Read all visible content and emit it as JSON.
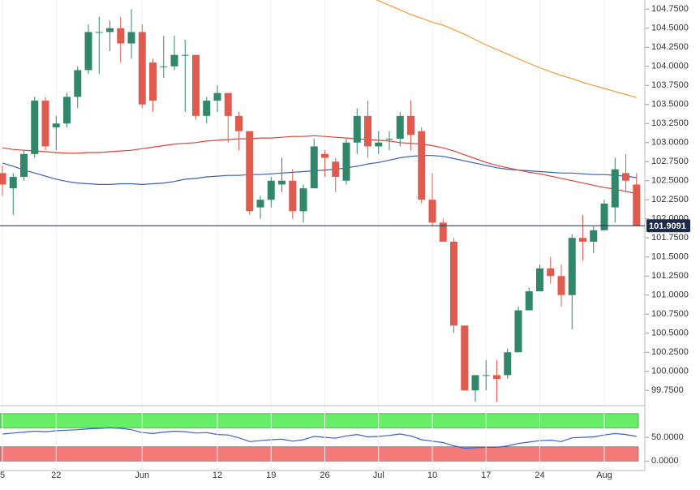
{
  "chart_data": [
    {
      "type": "candlestick",
      "categories": [
        "5",
        null,
        null,
        null,
        null,
        "22",
        null,
        null,
        null,
        null,
        null,
        null,
        null,
        "Jun",
        null,
        null,
        null,
        null,
        null,
        null,
        "12",
        null,
        null,
        null,
        null,
        "19",
        null,
        null,
        null,
        null,
        "26",
        null,
        null,
        null,
        null,
        "Jul",
        null,
        null,
        null,
        null,
        "10",
        null,
        null,
        null,
        null,
        "17",
        null,
        null,
        null,
        null,
        "24",
        null,
        null,
        null,
        null,
        null,
        "Aug",
        null,
        null,
        null
      ],
      "open": [
        102.6,
        102.4,
        102.55,
        102.85,
        103.55,
        103.2,
        103.25,
        103.6,
        103.95,
        104.45,
        104.45,
        104.5,
        104.3,
        104.45,
        104.05,
        104.0,
        104.0,
        104.15,
        104.15,
        103.35,
        103.55,
        103.65,
        103.35,
        103.15,
        102.15,
        102.25,
        102.45,
        102.5,
        102.1,
        102.4,
        102.85,
        102.75,
        102.5,
        103.0,
        103.35,
        102.95,
        103.05,
        103.05,
        103.35,
        103.15,
        102.25,
        101.95,
        101.7,
        100.6,
        99.75,
        99.95,
        99.95,
        99.95,
        100.25,
        100.8,
        101.05,
        101.35,
        101.25,
        101.0,
        101.75,
        101.7,
        101.85,
        102.15,
        102.6,
        102.45
      ],
      "high": [
        102.7,
        102.6,
        102.9,
        103.6,
        103.6,
        103.35,
        103.65,
        104.0,
        104.55,
        104.65,
        104.6,
        104.65,
        104.75,
        104.55,
        104.1,
        104.4,
        104.4,
        104.35,
        104.15,
        103.6,
        103.75,
        103.65,
        103.4,
        103.15,
        102.3,
        102.55,
        102.8,
        102.65,
        102.45,
        103.05,
        102.9,
        102.8,
        103.05,
        103.45,
        103.55,
        103.15,
        103.15,
        103.4,
        103.55,
        103.2,
        102.6,
        102.0,
        101.75,
        100.6,
        99.95,
        100.15,
        100.15,
        100.3,
        100.85,
        101.1,
        101.4,
        101.5,
        101.4,
        101.8,
        102.05,
        101.9,
        102.25,
        102.8,
        102.85,
        102.6
      ],
      "low": [
        102.3,
        102.05,
        102.5,
        102.8,
        102.9,
        102.9,
        103.2,
        103.45,
        103.9,
        103.9,
        104.2,
        104.05,
        104.1,
        103.45,
        103.4,
        103.85,
        103.95,
        103.4,
        103.3,
        103.25,
        103.4,
        103.0,
        102.9,
        102.05,
        102.0,
        102.15,
        102.35,
        102.0,
        101.95,
        102.4,
        102.55,
        102.35,
        102.45,
        102.85,
        102.8,
        102.85,
        102.9,
        102.95,
        102.9,
        102.2,
        101.9,
        101.7,
        100.5,
        99.75,
        99.6,
        99.75,
        99.6,
        99.9,
        100.25,
        100.8,
        101.05,
        101.15,
        100.85,
        100.55,
        101.45,
        101.55,
        101.85,
        101.95,
        102.35,
        101.9
      ],
      "close": [
        102.45,
        102.55,
        102.85,
        103.55,
        102.95,
        103.25,
        103.6,
        103.95,
        104.45,
        104.45,
        104.5,
        104.3,
        104.45,
        103.5,
        103.55,
        104.0,
        104.15,
        104.15,
        103.35,
        103.55,
        103.65,
        103.35,
        103.15,
        102.1,
        102.25,
        102.5,
        102.5,
        102.1,
        102.4,
        102.95,
        102.8,
        102.55,
        103.0,
        103.35,
        102.95,
        103.0,
        103.05,
        103.35,
        103.1,
        102.25,
        101.95,
        101.7,
        100.6,
        99.75,
        99.95,
        99.95,
        99.9,
        100.25,
        100.8,
        101.05,
        101.35,
        101.25,
        101.0,
        101.75,
        101.7,
        101.85,
        102.2,
        102.65,
        102.5,
        101.9091
      ],
      "up_color": "#31876a",
      "down_color": "#e15a4e",
      "series": [
        {
          "color": "#3a5fb4",
          "values": [
            102.73,
            102.69,
            102.64,
            102.6,
            102.56,
            102.52,
            102.49,
            102.47,
            102.46,
            102.45,
            102.45,
            102.46,
            102.46,
            102.45,
            102.46,
            102.47,
            102.49,
            102.52,
            102.53,
            102.55,
            102.56,
            102.57,
            102.57,
            102.58,
            102.58,
            102.59,
            102.6,
            102.61,
            102.62,
            102.63,
            102.64,
            102.65,
            102.67,
            102.69,
            102.72,
            102.74,
            102.77,
            102.8,
            102.82,
            102.83,
            102.83,
            102.82,
            102.79,
            102.76,
            102.73,
            102.7,
            102.67,
            102.65,
            102.64,
            102.63,
            102.62,
            102.61,
            102.6,
            102.6,
            102.59,
            102.58,
            102.58,
            102.57,
            102.56,
            102.54
          ]
        },
        {
          "color": "#d9443a",
          "values": [
            102.93,
            102.91,
            102.9,
            102.89,
            102.88,
            102.87,
            102.86,
            102.86,
            102.87,
            102.87,
            102.88,
            102.89,
            102.9,
            102.92,
            102.94,
            102.96,
            102.98,
            102.99,
            103.0,
            103.02,
            103.03,
            103.04,
            103.05,
            103.05,
            103.06,
            103.06,
            103.07,
            103.08,
            103.08,
            103.09,
            103.08,
            103.07,
            103.06,
            103.05,
            103.04,
            103.03,
            103.02,
            103.0,
            102.99,
            102.98,
            102.96,
            102.93,
            102.89,
            102.84,
            102.79,
            102.74,
            102.7,
            102.67,
            102.64,
            102.61,
            102.59,
            102.56,
            102.53,
            102.5,
            102.47,
            102.44,
            102.41,
            102.39,
            102.36,
            102.33
          ]
        },
        {
          "color": "#f39a3c",
          "values": [
            null,
            null,
            null,
            null,
            null,
            null,
            null,
            null,
            null,
            null,
            null,
            null,
            null,
            null,
            null,
            null,
            null,
            null,
            null,
            null,
            null,
            null,
            null,
            null,
            null,
            null,
            null,
            null,
            null,
            null,
            null,
            null,
            null,
            null,
            104.92,
            104.86,
            104.8,
            104.74,
            104.68,
            104.63,
            104.58,
            104.54,
            104.48,
            104.42,
            104.35,
            104.28,
            104.22,
            104.16,
            104.1,
            104.04,
            103.98,
            103.93,
            103.88,
            103.84,
            103.79,
            103.75,
            103.71,
            103.67,
            103.63,
            103.59
          ]
        }
      ],
      "last_price": 101.9091,
      "ylim": [
        99.55,
        104.87
      ],
      "yticks": [
        {
          "value": 99.75,
          "label": "99.7500"
        },
        {
          "value": 100.0,
          "label": "100.0000"
        },
        {
          "value": 100.25,
          "label": "100.2500"
        },
        {
          "value": 100.5,
          "label": "100.5000"
        },
        {
          "value": 100.75,
          "label": "100.7500"
        },
        {
          "value": 101.0,
          "label": "101.0000"
        },
        {
          "value": 101.25,
          "label": "101.2500"
        },
        {
          "value": 101.5,
          "label": "101.5000"
        },
        {
          "value": 101.75,
          "label": "101.7500"
        },
        {
          "value": 102.0,
          "label": "102.0000"
        },
        {
          "value": 102.25,
          "label": "102.2500"
        },
        {
          "value": 102.5,
          "label": "102.5000"
        },
        {
          "value": 102.75,
          "label": "102.7500"
        },
        {
          "value": 103.0,
          "label": "103.0000"
        },
        {
          "value": 103.25,
          "label": "103.2500"
        },
        {
          "value": 103.5,
          "label": "103.5000"
        },
        {
          "value": 103.75,
          "label": "103.7500"
        },
        {
          "value": 104.0,
          "label": "104.0000"
        },
        {
          "value": 104.25,
          "label": "104.2500"
        },
        {
          "value": 104.5,
          "label": "104.5000"
        },
        {
          "value": 104.75,
          "label": "104.7500"
        }
      ],
      "grid": true
    },
    {
      "type": "line",
      "series": [
        {
          "color": "#3a5fd6",
          "values": [
            57,
            59,
            61,
            63,
            62,
            64,
            65,
            66,
            68,
            69,
            70,
            69,
            66,
            60,
            58,
            61,
            63,
            62,
            59,
            60,
            56,
            55,
            49,
            41,
            43,
            45,
            46,
            42,
            45,
            52,
            50,
            48,
            53,
            56,
            51,
            52,
            54,
            57,
            53,
            45,
            42,
            39,
            32,
            27,
            28,
            29,
            29,
            32,
            37,
            40,
            43,
            44,
            41,
            49,
            50,
            51,
            55,
            58,
            56,
            52
          ]
        }
      ],
      "bands": [
        {
          "range": [
            70,
            100
          ],
          "color": "#66ee66"
        },
        {
          "range": [
            0,
            30
          ],
          "color": "#f47a7a"
        }
      ],
      "ylim": [
        -20,
        110
      ],
      "yticks": [
        {
          "value": 0,
          "label": "0.0000"
        },
        {
          "value": 50,
          "label": "50.0000"
        }
      ]
    }
  ]
}
